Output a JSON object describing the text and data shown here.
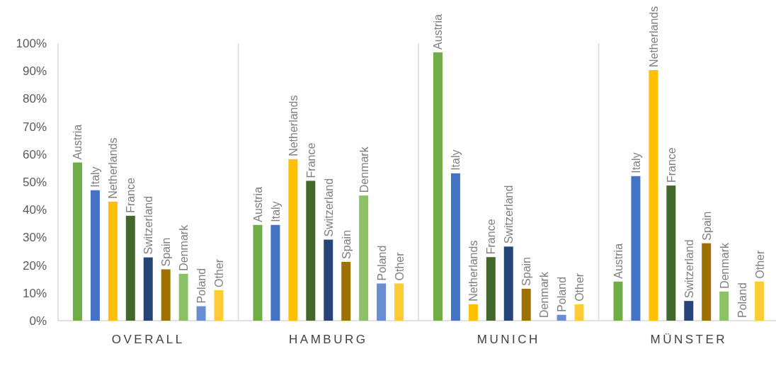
{
  "chart_data": {
    "type": "bar",
    "categories": [
      "OVERALL",
      "HAMBURG",
      "MUNICH",
      "MÜNSTER"
    ],
    "series": [
      {
        "name": "Austria",
        "color": "#70ad47",
        "values": [
          57,
          34.5,
          96.7,
          14.1
        ]
      },
      {
        "name": "Italy",
        "color": "#4472c4",
        "values": [
          47,
          34.5,
          53.1,
          52.1
        ]
      },
      {
        "name": "Netherlands",
        "color": "#ffc000",
        "values": [
          42.9,
          58.2,
          5.9,
          90.3
        ]
      },
      {
        "name": "France",
        "color": "#43682b",
        "values": [
          37.8,
          50.4,
          22.9,
          48.7
        ]
      },
      {
        "name": "Switzerland",
        "color": "#264478",
        "values": [
          22.8,
          29.2,
          26.7,
          7.1
        ]
      },
      {
        "name": "Spain",
        "color": "#9e7000",
        "values": [
          18.5,
          21.2,
          11.5,
          27.9
        ]
      },
      {
        "name": "Denmark",
        "color": "#8cc168",
        "values": [
          16.9,
          45.1,
          0,
          10.5
        ]
      },
      {
        "name": "Poland",
        "color": "#698ed0",
        "values": [
          5.2,
          13.4,
          2.1,
          0
        ]
      },
      {
        "name": "Other",
        "color": "#ffcd33",
        "values": [
          11,
          13.4,
          5.9,
          14.1
        ]
      }
    ],
    "ylim": [
      0,
      100
    ],
    "yticks": [
      {
        "value": 0,
        "label": "0%"
      },
      {
        "value": 10,
        "label": "10%"
      },
      {
        "value": 20,
        "label": "20%"
      },
      {
        "value": 30,
        "label": "30%"
      },
      {
        "value": 40,
        "label": "40%"
      },
      {
        "value": 50,
        "label": "50%"
      },
      {
        "value": 60,
        "label": "60%"
      },
      {
        "value": 70,
        "label": "70%"
      },
      {
        "value": 80,
        "label": "80%"
      },
      {
        "value": 90,
        "label": "90%"
      },
      {
        "value": 100,
        "label": "100%"
      }
    ],
    "grid": false
  }
}
